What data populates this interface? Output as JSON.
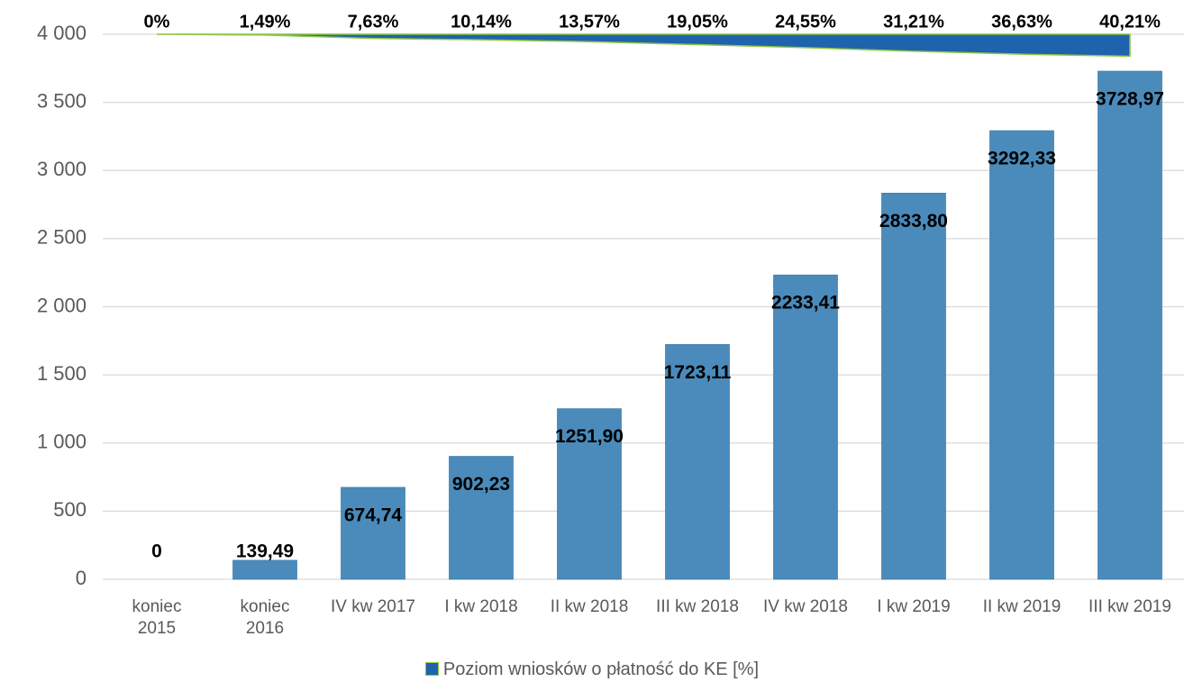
{
  "chart_data": {
    "type": "bar",
    "categories": [
      "koniec 2015",
      "koniec 2016",
      "IV kw 2017",
      "I kw 2018",
      "II kw 2018",
      "III kw 2018",
      "IV kw 2018",
      "I kw 2019",
      "II kw 2019",
      "III kw 2019"
    ],
    "series": [
      {
        "name": "Poziom wniosków o płatność  do KE [%]",
        "color": "#1f62ad",
        "axis": "y2",
        "values": [
          0,
          1.49,
          7.63,
          10.14,
          13.57,
          19.05,
          24.55,
          31.21,
          36.63,
          40.21
        ],
        "value_labels": [
          "0%",
          "1,49%",
          "7,63%",
          "10,14%",
          "13,57%",
          "19,05%",
          "24,55%",
          "31,21%",
          "36,63%",
          "40,21%"
        ]
      },
      {
        "color": "#4a8bbb",
        "values": [
          0,
          139.49,
          674.74,
          902.23,
          1251.9,
          1723.11,
          2233.41,
          2833.8,
          3292.33,
          3728.97
        ],
        "value_labels": [
          "0",
          "139,49",
          "674,74",
          "902,23",
          "1251,90",
          "1723,11",
          "2233,41",
          "2833,80",
          "3292,33",
          "3728,97"
        ]
      }
    ],
    "ylim": [
      0,
      4000
    ],
    "yticks": [
      0,
      500,
      {
        "value": 1000,
        "label": "1 000"
      },
      {
        "value": 1500,
        "label": "1 500"
      },
      {
        "value": 2000,
        "label": "2 000"
      },
      {
        "value": 2500,
        "label": "2 500"
      },
      {
        "value": 3000,
        "label": "3 000"
      },
      {
        "value": 3500,
        "label": "3 500"
      },
      {
        "value": 4000,
        "label": "4 000"
      }
    ],
    "y2lim": [
      0,
      1000
    ],
    "grid": true,
    "legend": "bottom"
  }
}
